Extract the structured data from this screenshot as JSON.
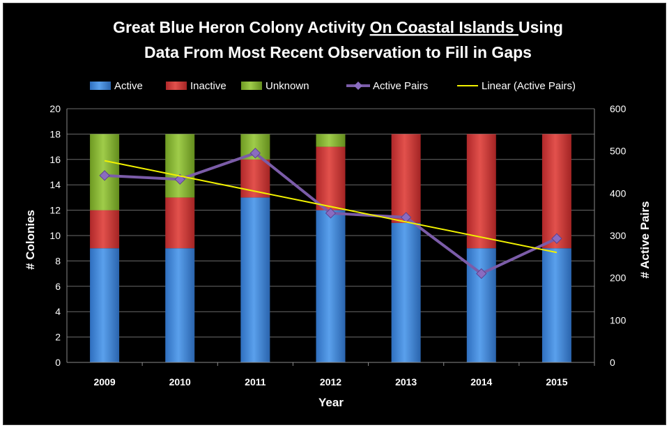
{
  "chart_data": {
    "type": "bar",
    "stacked": true,
    "title_parts": {
      "line1_before": "Great Blue Heron Colony Activity ",
      "line1_underlined": "On Coastal Islands ",
      "line1_after": "Using",
      "line2": "Data From Most Recent Observation to Fill in Gaps"
    },
    "xlabel": "Year",
    "ylabel": "# Colonies",
    "y2label": "# Active Pairs",
    "categories": [
      "2009",
      "2010",
      "2011",
      "2012",
      "2013",
      "2014",
      "2015"
    ],
    "series": [
      {
        "name": "Active",
        "type": "bar",
        "axis": "left",
        "color": "#4a90e2",
        "values": [
          9,
          9,
          13,
          12,
          11,
          9,
          9
        ]
      },
      {
        "name": "Inactive",
        "type": "bar",
        "axis": "left",
        "color": "#d93a36",
        "values": [
          3,
          4,
          3,
          5,
          7,
          9,
          9
        ]
      },
      {
        "name": "Unknown",
        "type": "bar",
        "axis": "left",
        "color": "#8bbf35",
        "values": [
          6,
          5,
          2,
          1,
          0,
          0,
          0
        ]
      },
      {
        "name": "Active Pairs",
        "type": "line",
        "axis": "right",
        "color": "#7b5ca8",
        "values": [
          442,
          433,
          495,
          353,
          343,
          210,
          293
        ]
      },
      {
        "name": "Linear (Active Pairs)",
        "type": "trendline",
        "axis": "right",
        "color": "#f2f200",
        "values": [
          477,
          441,
          405,
          369,
          332,
          296,
          260
        ]
      }
    ],
    "ylim": [
      0,
      20
    ],
    "y_ticks": [
      "0",
      "2",
      "4",
      "6",
      "8",
      "10",
      "12",
      "14",
      "16",
      "18",
      "20"
    ],
    "y2lim": [
      0,
      600
    ],
    "y2_ticks": [
      "0",
      "100",
      "200",
      "300",
      "400",
      "500",
      "600"
    ],
    "grid": true,
    "legend_position": "top"
  }
}
